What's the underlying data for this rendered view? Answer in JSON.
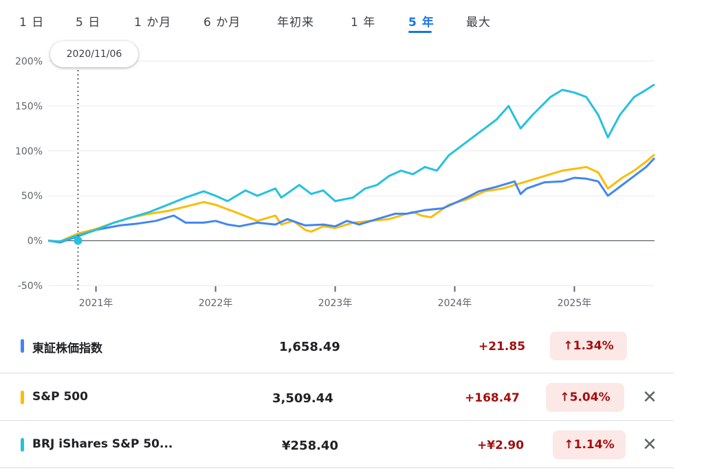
{
  "tabs": [
    {
      "label": "1 日",
      "active": false
    },
    {
      "label": "5 日",
      "active": false
    },
    {
      "label": "1 か月",
      "active": false
    },
    {
      "label": "6 か月",
      "active": false
    },
    {
      "label": "年初来",
      "active": false
    },
    {
      "label": "1 年",
      "active": false
    },
    {
      "label": "5 年",
      "active": true
    },
    {
      "label": "最大",
      "active": false
    }
  ],
  "tooltip_date": "2020/11/06",
  "colors": {
    "topix": "#4285f4",
    "sp500": "#fbbc04",
    "brj": "#24c1e0",
    "accent": "#1a73e8",
    "negative_bg": "#fce8e6",
    "positive_text": "#a50e0e"
  },
  "chart_data": {
    "type": "line",
    "x_ticks": [
      "2021年",
      "2022年",
      "2023年",
      "2024年",
      "2025年"
    ],
    "y_ticks": [
      "200%",
      "150%",
      "100%",
      "50%",
      "0%",
      "-50%"
    ],
    "ylim": [
      -50,
      200
    ],
    "x_range": [
      2020.6,
      2025.67
    ],
    "marker_x": 2020.85,
    "series": [
      {
        "name": "東証株価指数",
        "color": "#4285f4",
        "points": [
          [
            2020.6,
            0
          ],
          [
            2020.7,
            -2
          ],
          [
            2020.85,
            5
          ],
          [
            2021.0,
            12
          ],
          [
            2021.2,
            17
          ],
          [
            2021.35,
            19
          ],
          [
            2021.5,
            22
          ],
          [
            2021.65,
            28
          ],
          [
            2021.75,
            20
          ],
          [
            2021.9,
            20
          ],
          [
            2022.0,
            22
          ],
          [
            2022.1,
            18
          ],
          [
            2022.2,
            16
          ],
          [
            2022.35,
            20
          ],
          [
            2022.5,
            18
          ],
          [
            2022.6,
            24
          ],
          [
            2022.75,
            17
          ],
          [
            2022.9,
            18
          ],
          [
            2023.0,
            16
          ],
          [
            2023.1,
            22
          ],
          [
            2023.2,
            18
          ],
          [
            2023.35,
            24
          ],
          [
            2023.5,
            30
          ],
          [
            2023.6,
            30
          ],
          [
            2023.75,
            34
          ],
          [
            2023.9,
            36
          ],
          [
            2024.0,
            42
          ],
          [
            2024.1,
            48
          ],
          [
            2024.2,
            55
          ],
          [
            2024.35,
            60
          ],
          [
            2024.5,
            66
          ],
          [
            2024.55,
            52
          ],
          [
            2024.6,
            58
          ],
          [
            2024.75,
            65
          ],
          [
            2024.9,
            66
          ],
          [
            2025.0,
            70
          ],
          [
            2025.1,
            69
          ],
          [
            2025.2,
            66
          ],
          [
            2025.28,
            50
          ],
          [
            2025.4,
            62
          ],
          [
            2025.5,
            72
          ],
          [
            2025.6,
            82
          ],
          [
            2025.67,
            92
          ]
        ]
      },
      {
        "name": "S&P 500",
        "color": "#fbbc04",
        "points": [
          [
            2020.6,
            0
          ],
          [
            2020.7,
            -1
          ],
          [
            2020.85,
            8
          ],
          [
            2021.0,
            13
          ],
          [
            2021.15,
            20
          ],
          [
            2021.3,
            26
          ],
          [
            2021.45,
            30
          ],
          [
            2021.6,
            33
          ],
          [
            2021.75,
            38
          ],
          [
            2021.9,
            43
          ],
          [
            2022.0,
            40
          ],
          [
            2022.1,
            35
          ],
          [
            2022.2,
            30
          ],
          [
            2022.35,
            22
          ],
          [
            2022.5,
            28
          ],
          [
            2022.55,
            18
          ],
          [
            2022.65,
            22
          ],
          [
            2022.75,
            12
          ],
          [
            2022.8,
            10
          ],
          [
            2022.9,
            16
          ],
          [
            2023.0,
            14
          ],
          [
            2023.15,
            20
          ],
          [
            2023.3,
            22
          ],
          [
            2023.45,
            24
          ],
          [
            2023.55,
            28
          ],
          [
            2023.65,
            32
          ],
          [
            2023.72,
            28
          ],
          [
            2023.8,
            26
          ],
          [
            2023.95,
            40
          ],
          [
            2024.1,
            46
          ],
          [
            2024.25,
            55
          ],
          [
            2024.4,
            58
          ],
          [
            2024.5,
            62
          ],
          [
            2024.6,
            66
          ],
          [
            2024.75,
            72
          ],
          [
            2024.9,
            78
          ],
          [
            2025.0,
            80
          ],
          [
            2025.1,
            82
          ],
          [
            2025.2,
            76
          ],
          [
            2025.28,
            58
          ],
          [
            2025.4,
            70
          ],
          [
            2025.5,
            78
          ],
          [
            2025.6,
            88
          ],
          [
            2025.67,
            96
          ]
        ]
      },
      {
        "name": "BRJ iShares S&P 50...",
        "color": "#24c1e0",
        "points": [
          [
            2020.6,
            0
          ],
          [
            2020.7,
            -1
          ],
          [
            2020.85,
            6
          ],
          [
            2021.0,
            12
          ],
          [
            2021.15,
            20
          ],
          [
            2021.3,
            26
          ],
          [
            2021.45,
            32
          ],
          [
            2021.6,
            40
          ],
          [
            2021.75,
            48
          ],
          [
            2021.9,
            55
          ],
          [
            2022.0,
            50
          ],
          [
            2022.1,
            44
          ],
          [
            2022.25,
            56
          ],
          [
            2022.35,
            50
          ],
          [
            2022.5,
            58
          ],
          [
            2022.55,
            48
          ],
          [
            2022.7,
            62
          ],
          [
            2022.8,
            52
          ],
          [
            2022.9,
            56
          ],
          [
            2023.0,
            44
          ],
          [
            2023.15,
            48
          ],
          [
            2023.25,
            58
          ],
          [
            2023.35,
            62
          ],
          [
            2023.45,
            72
          ],
          [
            2023.55,
            78
          ],
          [
            2023.65,
            74
          ],
          [
            2023.75,
            82
          ],
          [
            2023.85,
            78
          ],
          [
            2023.95,
            95
          ],
          [
            2024.1,
            110
          ],
          [
            2024.25,
            125
          ],
          [
            2024.35,
            135
          ],
          [
            2024.45,
            150
          ],
          [
            2024.55,
            125
          ],
          [
            2024.65,
            140
          ],
          [
            2024.8,
            160
          ],
          [
            2024.9,
            168
          ],
          [
            2025.0,
            165
          ],
          [
            2025.1,
            160
          ],
          [
            2025.2,
            140
          ],
          [
            2025.28,
            115
          ],
          [
            2025.38,
            140
          ],
          [
            2025.5,
            160
          ],
          [
            2025.6,
            168
          ],
          [
            2025.67,
            174
          ]
        ]
      }
    ]
  },
  "rows": [
    {
      "name": "東証株価指数",
      "price": "1,658.49",
      "change": "+21.85",
      "pct": "↑1.34%",
      "closable": false
    },
    {
      "name": "S&P 500",
      "price": "3,509.44",
      "change": "+168.47",
      "pct": "↑5.04%",
      "closable": true
    },
    {
      "name": "BRJ iShares S&P 50...",
      "price": "¥258.40",
      "change": "+¥2.90",
      "pct": "↑1.14%",
      "closable": true
    }
  ],
  "close_glyph": "✕"
}
